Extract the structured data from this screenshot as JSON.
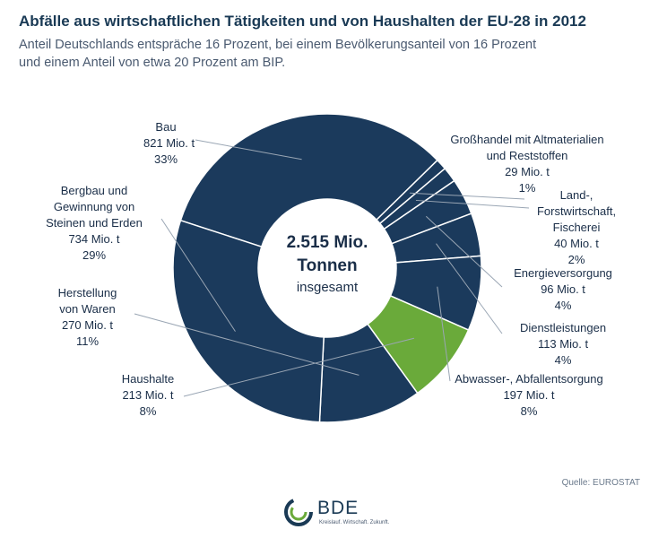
{
  "header": {
    "title": "Abfälle aus wirtschaftlichen Tätigkeiten und von Haushalten der EU-28 in 2012",
    "subtitle_line1": "Anteil Deutschlands entspräche 16 Prozent, bei einem Bevölkerungsanteil von 16 Prozent",
    "subtitle_line2": "und einem Anteil von etwa 20 Prozent am BIP."
  },
  "chart_data": {
    "type": "pie",
    "donut": true,
    "unit": "Mio. t",
    "total_line1": "2.515 Mio.",
    "total_line2": "Tonnen",
    "total_line3": "insgesamt",
    "slices": [
      {
        "key": "bau",
        "value": 821,
        "color": "#1b3a5c",
        "label_lines": [
          "Bau",
          "821 Mio. t",
          "33%"
        ]
      },
      {
        "key": "grosshandel",
        "value": 29,
        "color": "#1b3a5c",
        "label_lines": [
          "Großhandel mit Altmaterialien",
          "und Reststoffen",
          "29 Mio. t",
          "1%"
        ]
      },
      {
        "key": "land",
        "value": 40,
        "color": "#1b3a5c",
        "label_lines": [
          "Land-,",
          "Forstwirtschaft,",
          "Fischerei",
          "40 Mio. t",
          "2%"
        ]
      },
      {
        "key": "energie",
        "value": 96,
        "color": "#1b3a5c",
        "label_lines": [
          "Energieversorgung",
          "96 Mio. t",
          "4%"
        ]
      },
      {
        "key": "dienst",
        "value": 113,
        "color": "#1b3a5c",
        "label_lines": [
          "Dienstleistungen",
          "113 Mio. t",
          "4%"
        ]
      },
      {
        "key": "abwasser",
        "value": 197,
        "color": "#1b3a5c",
        "label_lines": [
          "Abwasser-, Abfallentsorgung",
          "197 Mio. t",
          "8%"
        ]
      },
      {
        "key": "haushalte",
        "value": 213,
        "color": "#6aaa3a",
        "label_lines": [
          "Haushalte",
          "213 Mio. t",
          "8%"
        ]
      },
      {
        "key": "herstellung",
        "value": 270,
        "color": "#1b3a5c",
        "label_lines": [
          "Herstellung",
          "von Waren",
          "270 Mio. t",
          "11%"
        ]
      },
      {
        "key": "bergbau",
        "value": 734,
        "color": "#1b3a5c",
        "label_lines": [
          "Bergbau und",
          "Gewinnung von",
          "Steinen und Erden",
          "734 Mio. t",
          "29%"
        ]
      }
    ]
  },
  "footer": {
    "source": "Quelle: EUROSTAT",
    "logo_text": "BDE",
    "logo_tagline": "Kreislauf. Wirtschaft. Zukunft."
  },
  "colors": {
    "dark_navy": "#1b3a5c",
    "green": "#6aaa3a",
    "separator": "#ffffff",
    "leader": "#9aa6b4"
  }
}
